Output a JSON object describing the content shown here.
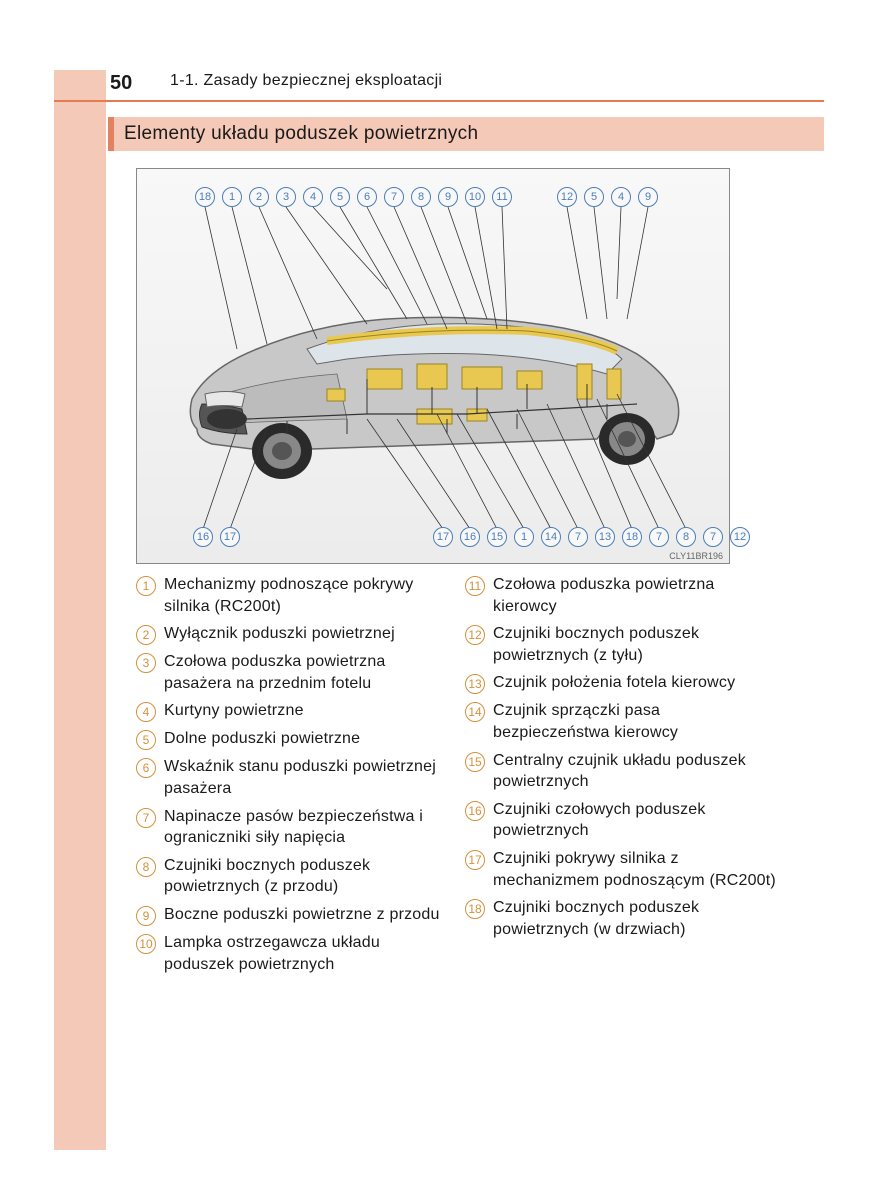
{
  "page_number": "50",
  "section_label": "1-1. Zasady bezpiecznej eksploatacji",
  "heading": "Elementy układu poduszek powietrznych",
  "diagram_code": "CLY11BR196",
  "colors": {
    "accent_bg": "#f4c9b8",
    "accent_line": "#e67a52",
    "accent_bar": "#e38260",
    "callout_circle": "#4a7fb8",
    "legend_circle": "#d4913c",
    "text": "#1a1a1a",
    "airbag_fill": "#e8c850",
    "car_body": "#a8a8a8"
  },
  "callouts_top_left": [
    "18",
    "1",
    "2",
    "3",
    "4",
    "5",
    "6",
    "7",
    "8",
    "9",
    "10",
    "11"
  ],
  "callouts_top_right": [
    "12",
    "5",
    "4",
    "9"
  ],
  "callouts_bottom_left": [
    "16",
    "17"
  ],
  "callouts_bottom_right": [
    "17",
    "16",
    "15",
    "1",
    "14",
    "7",
    "13",
    "18",
    "7",
    "8",
    "7",
    "12"
  ],
  "legend_left": [
    {
      "n": "1",
      "t": "Mechanizmy podnoszące pokrywy silnika (RC200t)"
    },
    {
      "n": "2",
      "t": "Wyłącznik poduszki powietrznej"
    },
    {
      "n": "3",
      "t": "Czołowa poduszka powietrzna pasażera na przednim fotelu"
    },
    {
      "n": "4",
      "t": "Kurtyny powietrzne"
    },
    {
      "n": "5",
      "t": "Dolne poduszki powietrzne"
    },
    {
      "n": "6",
      "t": "Wskaźnik stanu poduszki powietrznej pasażera"
    },
    {
      "n": "7",
      "t": "Napinacze pasów bezpieczeństwa i ograniczniki siły napięcia"
    },
    {
      "n": "8",
      "t": "Czujniki bocznych poduszek powietrznych (z przodu)"
    },
    {
      "n": "9",
      "t": "Boczne poduszki powietrzne z przodu"
    },
    {
      "n": "10",
      "t": "Lampka ostrzegawcza układu poduszek powietrznych"
    }
  ],
  "legend_right": [
    {
      "n": "11",
      "t": "Czołowa poduszka powietrzna kierowcy"
    },
    {
      "n": "12",
      "t": "Czujniki bocznych poduszek powietrznych (z tyłu)"
    },
    {
      "n": "13",
      "t": "Czujnik położenia fotela kierowcy"
    },
    {
      "n": "14",
      "t": "Czujnik sprzączki pasa bezpieczeństwa kierowcy"
    },
    {
      "n": "15",
      "t": "Centralny czujnik układu poduszek powietrznych"
    },
    {
      "n": "16",
      "t": "Czujniki czołowych poduszek powietrznych"
    },
    {
      "n": "17",
      "t": "Czujniki pokrywy silnika z mechanizmem podnoszącym (RC200t)"
    },
    {
      "n": "18",
      "t": "Czujniki bocznych poduszek powietrznych (w drzwiach)"
    }
  ]
}
